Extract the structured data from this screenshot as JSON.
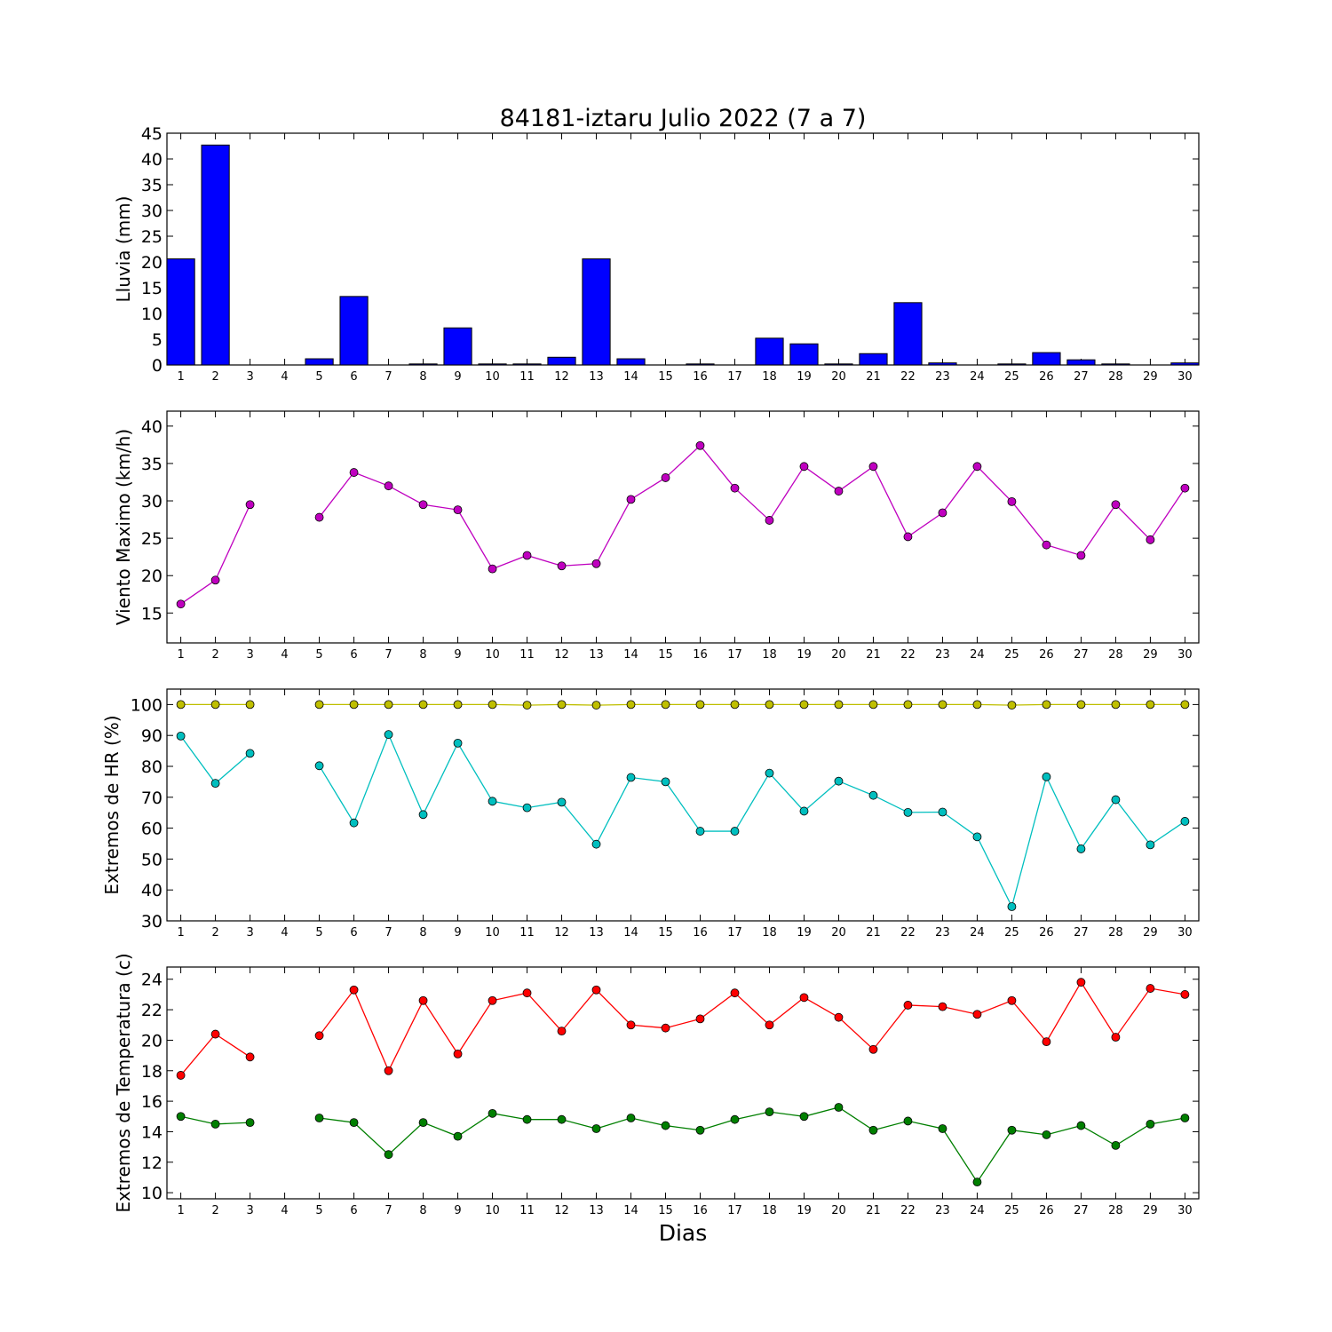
{
  "title": "84181-iztaru Julio 2022  (7 a 7)",
  "xlabel": "Dias",
  "chart_data": [
    {
      "type": "bar",
      "ylabel": "Lluvia (mm)",
      "ylim": [
        0,
        45
      ],
      "yticks": [
        0,
        5,
        10,
        15,
        20,
        25,
        30,
        35,
        40,
        45
      ],
      "x": [
        1,
        2,
        3,
        4,
        5,
        6,
        7,
        8,
        9,
        10,
        11,
        12,
        13,
        14,
        15,
        16,
        17,
        18,
        19,
        20,
        21,
        22,
        23,
        24,
        25,
        26,
        27,
        28,
        29,
        30
      ],
      "series": [
        {
          "color": "#0000ff",
          "values": [
            20.6,
            42.7,
            0,
            0,
            1.2,
            13.3,
            0,
            0.2,
            7.2,
            0.2,
            0.2,
            1.5,
            20.6,
            1.2,
            0,
            0.2,
            0,
            5.2,
            4.1,
            0.2,
            2.2,
            12.1,
            0.4,
            0,
            0.2,
            2.4,
            1.0,
            0.2,
            0,
            0.4
          ]
        }
      ]
    },
    {
      "type": "line",
      "ylabel": "Viento Maximo (km/h)",
      "ylim": [
        11,
        42
      ],
      "yticks": [
        15,
        20,
        25,
        30,
        35,
        40
      ],
      "x": [
        1,
        2,
        3,
        4,
        5,
        6,
        7,
        8,
        9,
        10,
        11,
        12,
        13,
        14,
        15,
        16,
        17,
        18,
        19,
        20,
        21,
        22,
        23,
        24,
        25,
        26,
        27,
        28,
        29,
        30
      ],
      "series": [
        {
          "color": "#bf00bf",
          "values": [
            16.2,
            19.4,
            29.5,
            null,
            27.8,
            33.8,
            32.0,
            29.5,
            28.8,
            20.9,
            22.7,
            21.3,
            21.6,
            30.2,
            33.1,
            37.4,
            31.7,
            27.4,
            34.6,
            31.3,
            34.6,
            25.2,
            28.4,
            34.6,
            29.9,
            24.1,
            22.7,
            29.5,
            24.8,
            31.7
          ]
        }
      ]
    },
    {
      "type": "line",
      "ylabel": "Extremos de HR (%)",
      "ylim": [
        30,
        105
      ],
      "yticks": [
        30,
        40,
        50,
        60,
        70,
        80,
        90,
        100
      ],
      "x": [
        1,
        2,
        3,
        4,
        5,
        6,
        7,
        8,
        9,
        10,
        11,
        12,
        13,
        14,
        15,
        16,
        17,
        18,
        19,
        20,
        21,
        22,
        23,
        24,
        25,
        26,
        27,
        28,
        29,
        30
      ],
      "series": [
        {
          "color": "#bfbf00",
          "values": [
            100,
            100,
            100,
            null,
            100,
            100,
            100,
            100,
            100,
            100,
            99.8,
            100,
            99.8,
            100,
            100,
            100,
            100,
            100,
            100,
            100,
            100,
            100,
            100,
            100,
            99.8,
            100,
            100,
            100,
            100,
            100
          ]
        },
        {
          "color": "#00bfbf",
          "values": [
            89.8,
            74.5,
            84.2,
            null,
            80.2,
            61.7,
            90.3,
            64.4,
            87.5,
            68.7,
            66.6,
            68.4,
            54.8,
            76.4,
            75.0,
            59.0,
            59.0,
            77.8,
            65.5,
            75.2,
            70.6,
            65.1,
            65.2,
            57.2,
            34.6,
            76.6,
            53.3,
            69.2,
            54.6,
            62.2
          ]
        }
      ]
    },
    {
      "type": "line",
      "ylabel": "Extremos de Temperatura (c)",
      "ylim": [
        9.6,
        24.8
      ],
      "yticks": [
        10,
        12,
        14,
        16,
        18,
        20,
        22,
        24
      ],
      "x": [
        1,
        2,
        3,
        4,
        5,
        6,
        7,
        8,
        9,
        10,
        11,
        12,
        13,
        14,
        15,
        16,
        17,
        18,
        19,
        20,
        21,
        22,
        23,
        24,
        25,
        26,
        27,
        28,
        29,
        30
      ],
      "series": [
        {
          "color": "#ff0000",
          "values": [
            17.7,
            20.4,
            18.9,
            null,
            20.3,
            23.3,
            18.0,
            22.6,
            19.1,
            22.6,
            23.1,
            20.6,
            23.3,
            21.0,
            20.8,
            21.4,
            23.1,
            21.0,
            22.8,
            21.5,
            19.4,
            22.3,
            22.2,
            21.7,
            22.6,
            19.9,
            23.8,
            20.2,
            23.4,
            23.0
          ]
        },
        {
          "color": "#007f00",
          "values": [
            15.0,
            14.5,
            14.6,
            null,
            14.9,
            14.6,
            12.5,
            14.6,
            13.7,
            15.2,
            14.8,
            14.8,
            14.2,
            14.9,
            14.4,
            14.1,
            14.8,
            15.3,
            15.0,
            15.6,
            14.1,
            14.7,
            14.2,
            10.7,
            14.1,
            13.8,
            14.4,
            13.1,
            14.5,
            14.9
          ]
        }
      ]
    }
  ]
}
